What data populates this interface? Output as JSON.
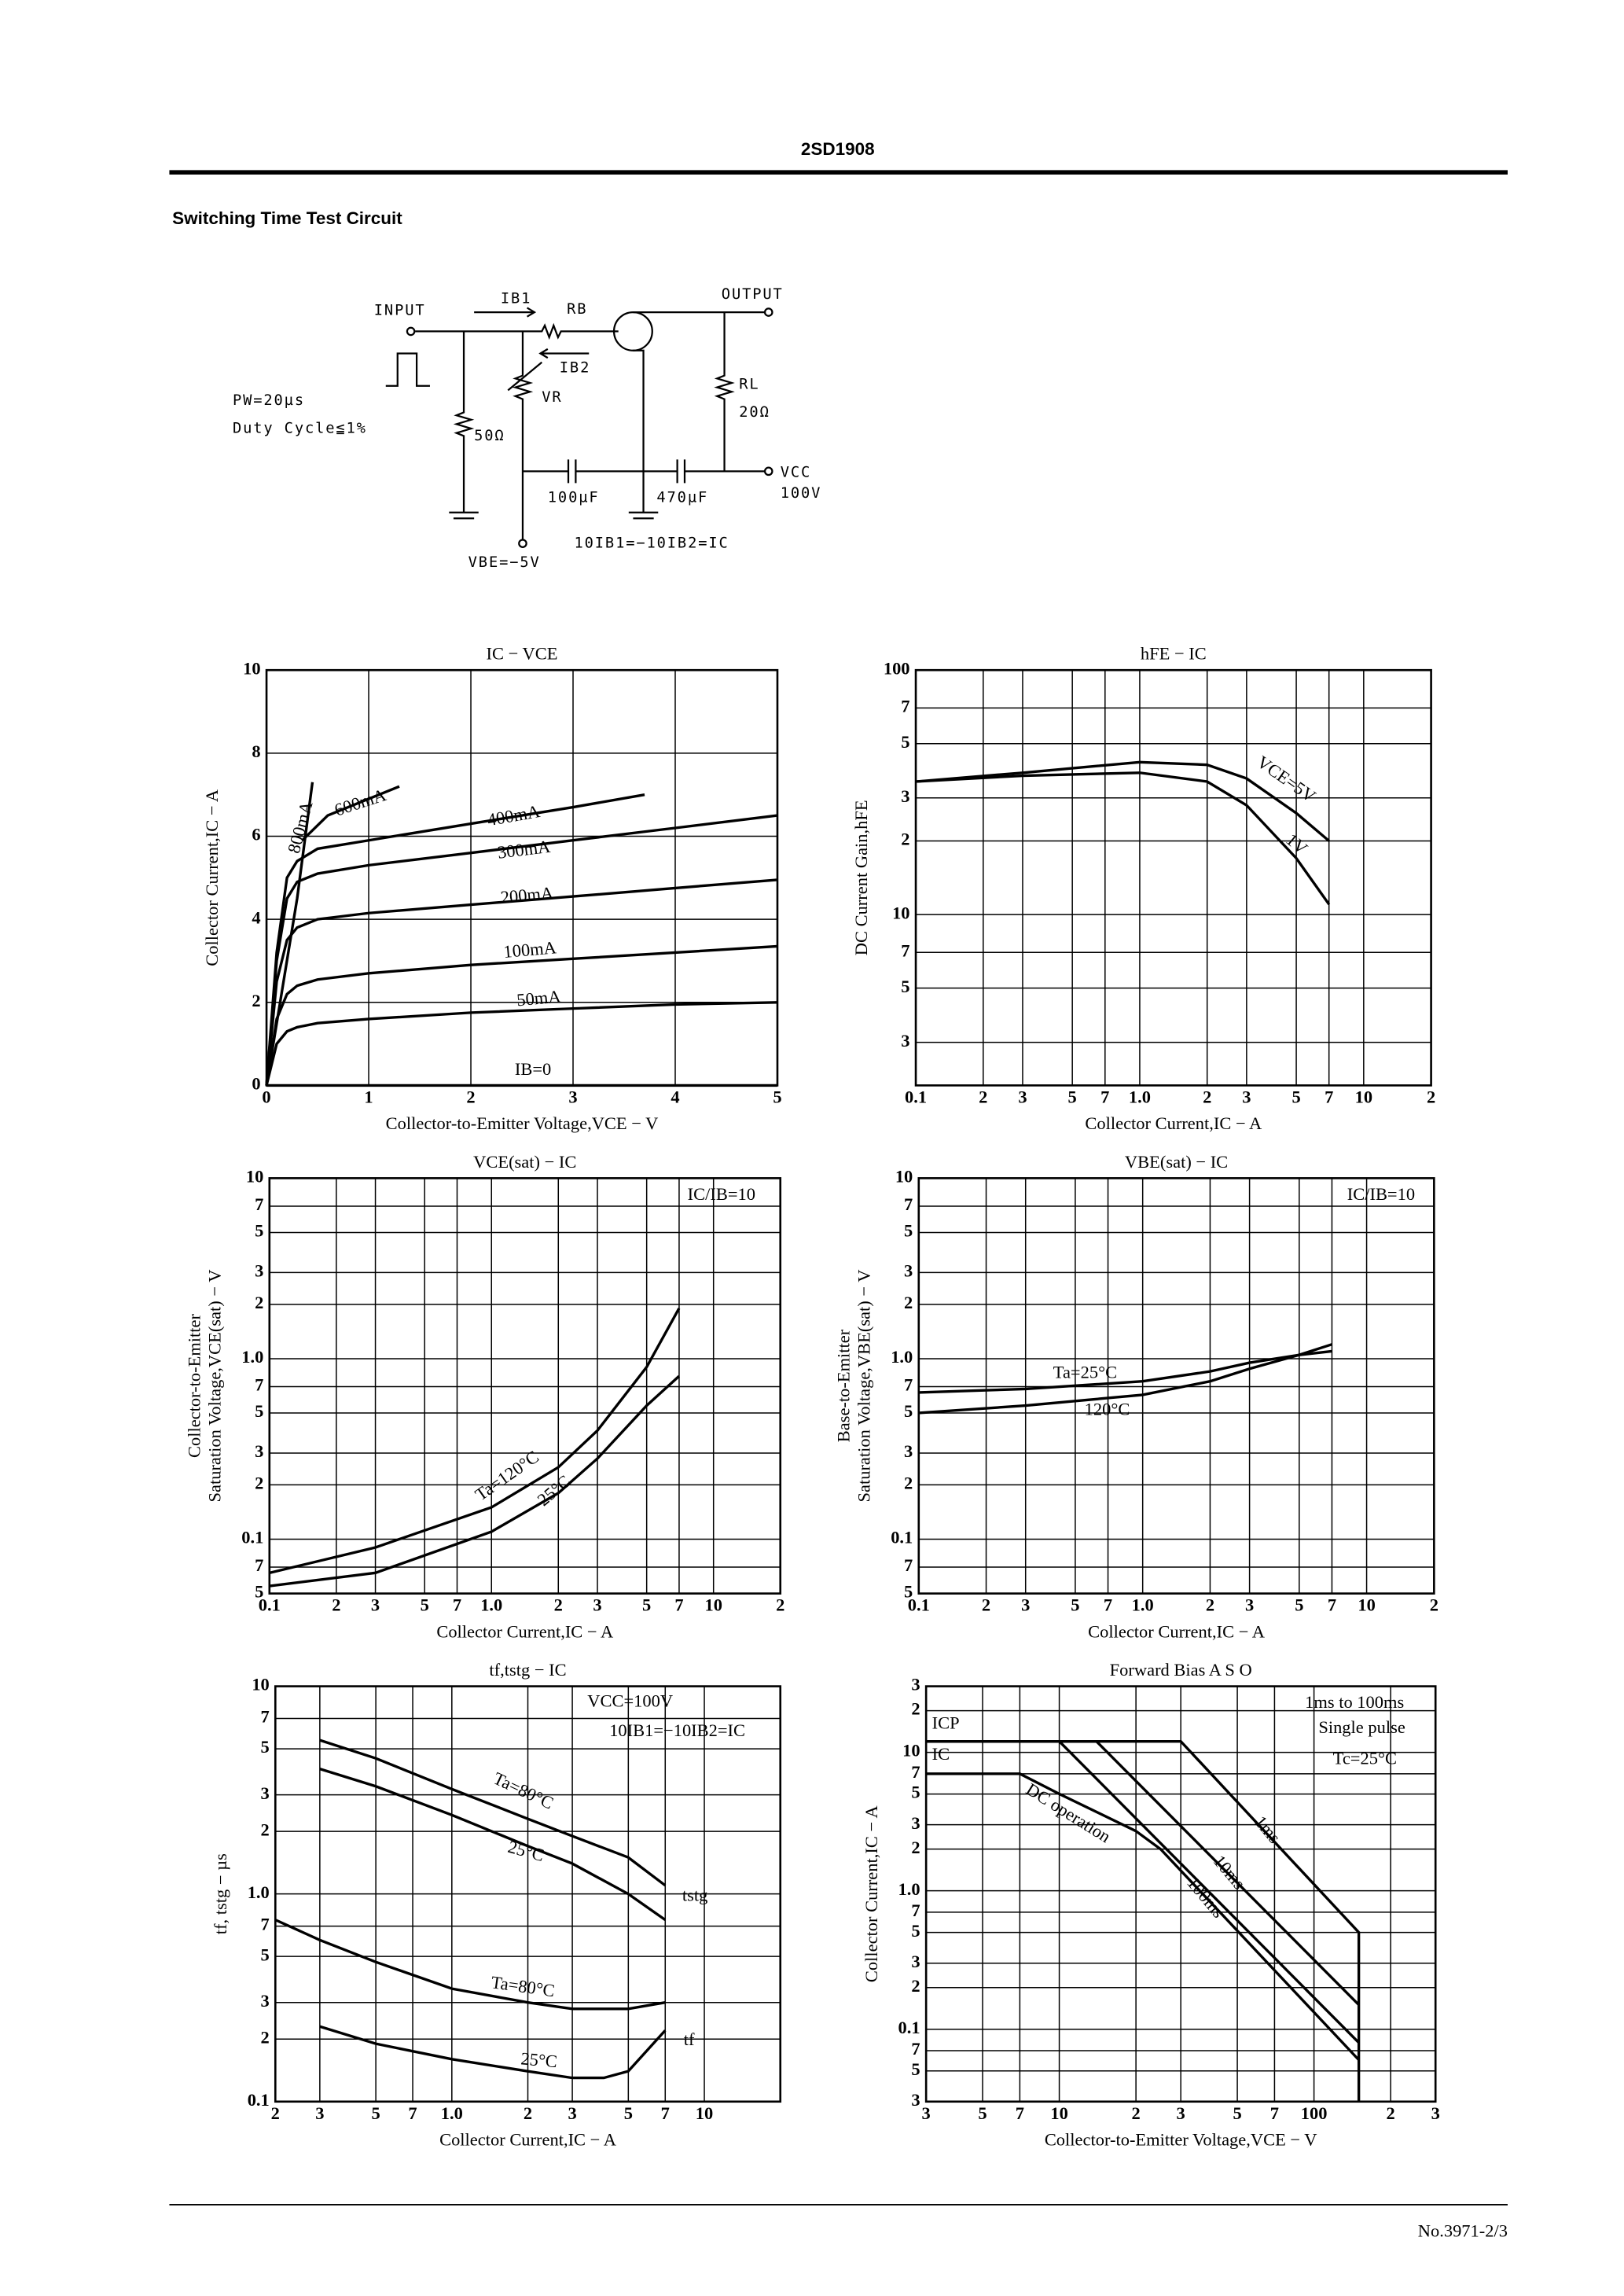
{
  "header": {
    "title": "2SD1908"
  },
  "section_title": "Switching Time Test Circuit",
  "circuit": {
    "input": "INPUT",
    "output": "OUTPUT",
    "ib1": "IB1",
    "rb": "RB",
    "ib2": "IB2",
    "vr": "VR",
    "pw": "PW=20µs",
    "duty": "Duty Cycle≦1%",
    "r50": "50Ω",
    "rl": "RL",
    "r20": "20Ω",
    "vcc": "VCC",
    "vcc_value": "100V",
    "c100": "100µF",
    "c470": "470µF",
    "vbe": "VBE=−5V",
    "relation": "10IB1=−10IB2=IC"
  },
  "chart_data": [
    {
      "type": "line",
      "title": "IC − VCE",
      "xlabel": "Collector-to-Emitter Voltage,VCE − V",
      "ylabel": "Collector Current,IC − A",
      "log": false,
      "grid": true,
      "color": "#000000",
      "xlim": [
        0,
        5
      ],
      "ylim": [
        0,
        10
      ],
      "xticks": [
        0,
        1,
        2,
        3,
        4,
        5
      ],
      "yticks": [
        0,
        2,
        4,
        6,
        8,
        10
      ],
      "annotations": [],
      "series": [
        {
          "name": "50mA",
          "x": [
            0,
            0.1,
            0.2,
            0.3,
            0.5,
            1,
            2,
            3,
            4,
            5
          ],
          "values": [
            0,
            1,
            1.3,
            1.4,
            1.5,
            1.6,
            1.75,
            1.85,
            1.95,
            2.0
          ]
        },
        {
          "name": "100mA",
          "x": [
            0,
            0.1,
            0.2,
            0.3,
            0.5,
            1,
            2,
            3,
            4,
            5
          ],
          "values": [
            0,
            1.6,
            2.2,
            2.4,
            2.55,
            2.7,
            2.9,
            3.05,
            3.2,
            3.35
          ]
        },
        {
          "name": "200mA",
          "x": [
            0,
            0.1,
            0.2,
            0.3,
            0.5,
            1,
            2,
            3,
            4,
            5
          ],
          "values": [
            0,
            2.5,
            3.5,
            3.8,
            4.0,
            4.15,
            4.35,
            4.55,
            4.75,
            4.95
          ]
        },
        {
          "name": "300mA",
          "x": [
            0,
            0.1,
            0.2,
            0.3,
            0.5,
            1,
            2,
            3,
            4,
            5
          ],
          "values": [
            0,
            3,
            4.5,
            4.9,
            5.1,
            5.3,
            5.6,
            5.9,
            6.2,
            6.5
          ]
        },
        {
          "name": "400mA",
          "x": [
            0,
            0.1,
            0.2,
            0.3,
            0.5,
            1,
            2,
            3,
            3.7
          ],
          "values": [
            0,
            3.2,
            5,
            5.4,
            5.7,
            5.9,
            6.3,
            6.7,
            7.0
          ]
        },
        {
          "name": "600mA",
          "x": [
            0.35,
            0.6,
            1.3
          ],
          "values": [
            5.9,
            6.5,
            7.2
          ]
        },
        {
          "name": "800mA",
          "x": [
            0,
            0.3,
            0.45
          ],
          "values": [
            0,
            4.5,
            7.3
          ]
        },
        {
          "name": "IB=0",
          "x": [
            0,
            5
          ],
          "values": [
            0,
            0
          ]
        }
      ]
    },
    {
      "type": "line",
      "title": "hFE − IC",
      "xlabel": "Collector Current,IC − A",
      "ylabel": "DC Current Gain,hFE",
      "log": true,
      "grid": true,
      "color": "#000000",
      "xlim": [
        0.1,
        20
      ],
      "ylim": [
        2,
        100
      ],
      "xticks": [
        0.1,
        {
          "value": 0.2,
          "label": "2"
        },
        {
          "value": 0.3,
          "label": "3"
        },
        {
          "value": 0.5,
          "label": "5"
        },
        {
          "value": 0.7,
          "label": "7"
        },
        {
          "value": 1,
          "label": "1.0"
        },
        2,
        3,
        5,
        7,
        10,
        {
          "value": 20,
          "label": "2"
        }
      ],
      "yticks": [
        3,
        5,
        7,
        10,
        {
          "value": 20,
          "label": "2"
        },
        {
          "value": 30,
          "label": "3"
        },
        {
          "value": 50,
          "label": "5"
        },
        {
          "value": 70,
          "label": "7"
        },
        100
      ],
      "annotations": [],
      "series": [
        {
          "name": "VCE=5V",
          "x": [
            0.1,
            0.3,
            1,
            2,
            3,
            5,
            7
          ],
          "values": [
            35,
            38,
            42,
            41,
            36,
            26,
            20
          ]
        },
        {
          "name": "1V",
          "x": [
            0.1,
            0.3,
            1,
            2,
            3,
            5,
            7
          ],
          "values": [
            35,
            37,
            38,
            35,
            28,
            17,
            11
          ]
        }
      ]
    },
    {
      "type": "line",
      "title": "VCE(sat) − IC",
      "xlabel": "Collector Current,IC − A",
      "ylabel": [
        "Collector-to-Emitter",
        "Saturation Voltage,VCE(sat) − V"
      ],
      "log": true,
      "grid": true,
      "color": "#000000",
      "xlim": [
        0.1,
        20
      ],
      "ylim": [
        0.05,
        10
      ],
      "xticks": [
        0.1,
        {
          "value": 0.2,
          "label": "2"
        },
        {
          "value": 0.3,
          "label": "3"
        },
        {
          "value": 0.5,
          "label": "5"
        },
        {
          "value": 0.7,
          "label": "7"
        },
        {
          "value": 1,
          "label": "1.0"
        },
        2,
        3,
        5,
        7,
        10,
        {
          "value": 20,
          "label": "2"
        }
      ],
      "yticks": [
        {
          "value": 0.05,
          "label": "5"
        },
        {
          "value": 0.07,
          "label": "7"
        },
        0.1,
        {
          "value": 0.2,
          "label": "2"
        },
        {
          "value": 0.3,
          "label": "3"
        },
        {
          "value": 0.5,
          "label": "5"
        },
        {
          "value": 0.7,
          "label": "7"
        },
        {
          "value": 1,
          "label": "1.0"
        },
        2,
        3,
        5,
        7,
        10
      ],
      "annotations": [
        "IC/IB=10"
      ],
      "series": [
        {
          "name": "Ta=120°C",
          "x": [
            0.1,
            0.3,
            1,
            2,
            3,
            5,
            7
          ],
          "values": [
            0.065,
            0.09,
            0.15,
            0.25,
            0.4,
            0.9,
            1.9
          ]
        },
        {
          "name": "25°C",
          "x": [
            0.1,
            0.3,
            1,
            2,
            3,
            5,
            7
          ],
          "values": [
            0.055,
            0.065,
            0.11,
            0.18,
            0.28,
            0.55,
            0.8
          ]
        }
      ]
    },
    {
      "type": "line",
      "title": "VBE(sat) − IC",
      "xlabel": "Collector Current,IC − A",
      "ylabel": [
        "Base-to-Emitter",
        "Saturation Voltage,VBE(sat) − V"
      ],
      "log": true,
      "grid": true,
      "color": "#000000",
      "xlim": [
        0.1,
        20
      ],
      "ylim": [
        0.05,
        10
      ],
      "xticks": [
        0.1,
        {
          "value": 0.2,
          "label": "2"
        },
        {
          "value": 0.3,
          "label": "3"
        },
        {
          "value": 0.5,
          "label": "5"
        },
        {
          "value": 0.7,
          "label": "7"
        },
        {
          "value": 1,
          "label": "1.0"
        },
        2,
        3,
        5,
        7,
        10,
        {
          "value": 20,
          "label": "2"
        }
      ],
      "yticks": [
        {
          "value": 0.05,
          "label": "5"
        },
        {
          "value": 0.07,
          "label": "7"
        },
        0.1,
        {
          "value": 0.2,
          "label": "2"
        },
        {
          "value": 0.3,
          "label": "3"
        },
        {
          "value": 0.5,
          "label": "5"
        },
        {
          "value": 0.7,
          "label": "7"
        },
        {
          "value": 1,
          "label": "1.0"
        },
        2,
        3,
        5,
        7,
        10
      ],
      "annotations": [
        "IC/IB=10"
      ],
      "series": [
        {
          "name": "Ta=25°C",
          "x": [
            0.1,
            0.3,
            1,
            2,
            3,
            5,
            7
          ],
          "values": [
            0.65,
            0.68,
            0.75,
            0.85,
            0.95,
            1.05,
            1.1
          ]
        },
        {
          "name": "120°C",
          "x": [
            0.1,
            0.3,
            1,
            2,
            3,
            5,
            7
          ],
          "values": [
            0.5,
            0.55,
            0.63,
            0.75,
            0.88,
            1.05,
            1.2
          ]
        }
      ]
    },
    {
      "type": "line",
      "title": "tf,tstg − IC",
      "xlabel": "Collector Current,IC − A",
      "ylabel": "tf, tstg − µs",
      "log": true,
      "grid": true,
      "color": "#000000",
      "xlim": [
        0.2,
        20
      ],
      "ylim": [
        0.1,
        10
      ],
      "xticks": [
        {
          "value": 0.2,
          "label": "2"
        },
        {
          "value": 0.3,
          "label": "3"
        },
        {
          "value": 0.5,
          "label": "5"
        },
        {
          "value": 0.7,
          "label": "7"
        },
        {
          "value": 1,
          "label": "1.0"
        },
        2,
        3,
        5,
        7,
        10
      ],
      "yticks": [
        0.1,
        {
          "value": 0.2,
          "label": "2"
        },
        {
          "value": 0.3,
          "label": "3"
        },
        {
          "value": 0.5,
          "label": "5"
        },
        {
          "value": 0.7,
          "label": "7"
        },
        {
          "value": 1,
          "label": "1.0"
        },
        2,
        3,
        5,
        7,
        10
      ],
      "annotations": [
        "VCC=100V",
        "10IB1=−10IB2=IC",
        "tstg",
        "tf"
      ],
      "series": [
        {
          "name": "Ta=80°C",
          "x": [
            0.3,
            0.5,
            1,
            2,
            3,
            5,
            7
          ],
          "values": [
            5.5,
            4.5,
            3.2,
            2.3,
            1.9,
            1.5,
            1.1
          ]
        },
        {
          "name": "25°C",
          "x": [
            0.3,
            0.5,
            1,
            2,
            3,
            5,
            7
          ],
          "values": [
            4,
            3.3,
            2.4,
            1.7,
            1.4,
            1.0,
            0.75
          ]
        },
        {
          "name": "Ta=80°C",
          "x": [
            0.2,
            0.3,
            0.5,
            1,
            2,
            3,
            5,
            7
          ],
          "values": [
            0.75,
            0.6,
            0.47,
            0.35,
            0.3,
            0.28,
            0.28,
            0.3
          ]
        },
        {
          "name": "25°C",
          "x": [
            0.3,
            0.5,
            1,
            2,
            3,
            4,
            5,
            7
          ],
          "values": [
            0.23,
            0.19,
            0.16,
            0.14,
            0.13,
            0.13,
            0.14,
            0.22
          ]
        }
      ]
    },
    {
      "type": "line",
      "title": "Forward Bias A S O",
      "xlabel": "Collector-to-Emitter Voltage,VCE − V",
      "ylabel": "Collector Current,IC − A",
      "log": true,
      "grid": true,
      "color": "#000000",
      "xlim": [
        3,
        300
      ],
      "ylim": [
        0.03,
        30
      ],
      "xticks": [
        3,
        5,
        7,
        10,
        {
          "value": 20,
          "label": "2"
        },
        {
          "value": 30,
          "label": "3"
        },
        {
          "value": 50,
          "label": "5"
        },
        {
          "value": 70,
          "label": "7"
        },
        100,
        {
          "value": 200,
          "label": "2"
        },
        {
          "value": 300,
          "label": "3"
        }
      ],
      "yticks": [
        {
          "value": 0.03,
          "label": "3"
        },
        {
          "value": 0.05,
          "label": "5"
        },
        {
          "value": 0.07,
          "label": "7"
        },
        0.1,
        {
          "value": 0.2,
          "label": "2"
        },
        {
          "value": 0.3,
          "label": "3"
        },
        {
          "value": 0.5,
          "label": "5"
        },
        {
          "value": 0.7,
          "label": "7"
        },
        {
          "value": 1,
          "label": "1.0"
        },
        2,
        3,
        5,
        7,
        10,
        {
          "value": 20,
          "label": "2"
        },
        {
          "value": 30,
          "label": "3"
        }
      ],
      "annotations": [
        "1ms to 100ms",
        "Single pulse",
        "Tc=25°C",
        "ICP",
        "IC"
      ],
      "series": [
        {
          "name": "1ms",
          "x": [
            3,
            30,
            150,
            150
          ],
          "values": [
            12,
            12,
            0.5,
            0.03
          ]
        },
        {
          "name": "10ms",
          "x": [
            3,
            14,
            150
          ],
          "values": [
            12,
            12,
            0.15
          ]
        },
        {
          "name": "100ms",
          "x": [
            10,
            150
          ],
          "values": [
            12,
            0.08
          ]
        },
        {
          "name": "DC operation",
          "x": [
            3,
            7,
            10,
            20,
            25,
            150
          ],
          "values": [
            7,
            7,
            5,
            2.7,
            2,
            0.06
          ]
        }
      ]
    }
  ],
  "footer": {
    "page": "No.3971-2/3"
  }
}
